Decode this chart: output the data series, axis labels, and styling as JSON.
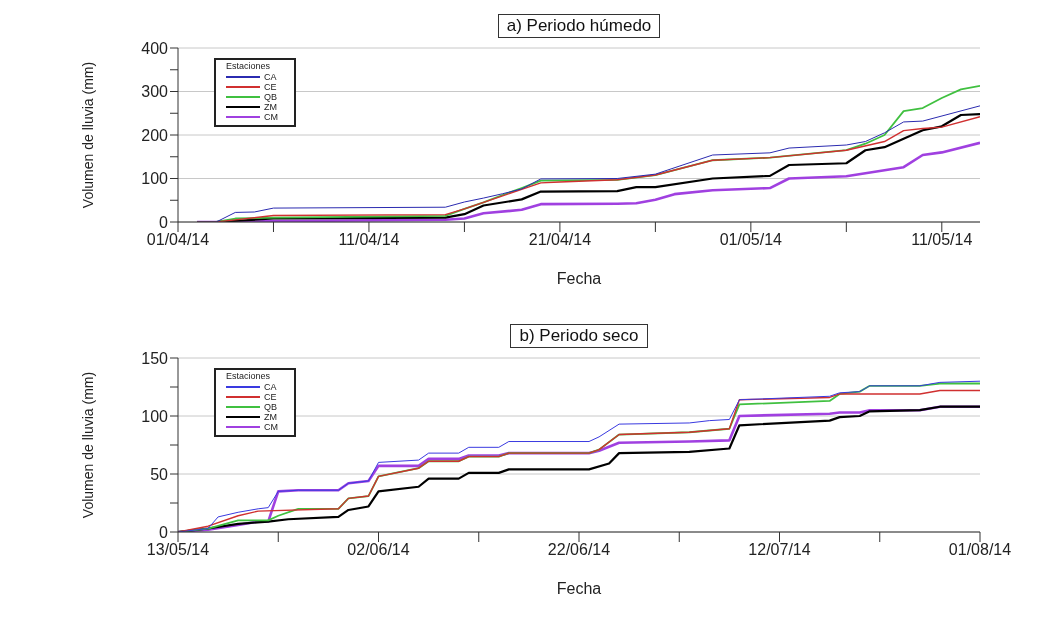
{
  "chart_data": [
    {
      "type": "line",
      "title": "a) Periodo húmedo",
      "xlabel": "Fecha",
      "ylabel": "Volumen de lluvia (mm)",
      "legend_title": "Estaciones",
      "legend": "top left",
      "grid": "y",
      "xlim": [
        "--04-01",
        "--05-13"
      ],
      "xticks": [
        {
          "value": "--04-01",
          "label": "01/04/14"
        },
        {
          "value": "--04-06",
          "label": null
        },
        {
          "value": "--04-11",
          "label": "11/04/14"
        },
        {
          "value": "--04-16",
          "label": null
        },
        {
          "value": "--04-21",
          "label": "21/04/14"
        },
        {
          "value": "--04-26",
          "label": null
        },
        {
          "value": "--05-01",
          "label": "01/05/14"
        },
        {
          "value": "--05-06",
          "label": null
        },
        {
          "value": "--05-11",
          "label": "11/05/14"
        }
      ],
      "ylim": [
        0,
        400
      ],
      "yticks": [
        0,
        {
          "value": 50,
          "label": null
        },
        100,
        {
          "value": 150,
          "label": null
        },
        200,
        {
          "value": 250,
          "label": null
        },
        300,
        {
          "value": 350,
          "label": null
        },
        400
      ],
      "series": [
        {
          "name": "CA",
          "color": "#2b2bb0",
          "x": [
            "--04-02",
            "--04-03",
            "--04-04",
            "--04-05",
            "--04-06",
            "--04-15",
            "--04-16",
            "--04-17",
            "--04-18",
            "--04-19",
            "--04-20",
            "--04-24",
            "--04-26",
            "--04-29",
            "--05-02",
            "--05-03",
            "--05-06",
            "--05-07",
            "--05-08",
            "--05-09",
            "--05-10",
            "--05-13"
          ],
          "values": [
            0,
            0,
            22,
            23,
            32,
            34,
            46,
            55,
            65,
            76,
            99,
            100,
            110,
            154,
            159,
            170,
            177,
            185,
            205,
            230,
            232,
            267
          ]
        },
        {
          "name": "CE",
          "color": "#d03030",
          "x": [
            "--04-02",
            "--04-03",
            "--04-04",
            "--04-06",
            "--04-15",
            "--04-16",
            "--04-17",
            "--04-18",
            "--04-19",
            "--04-20",
            "--04-21",
            "--04-24",
            "--04-26",
            "--04-29",
            "--05-02",
            "--05-06",
            "--05-08",
            "--05-09",
            "--05-10",
            "--05-11",
            "--05-13"
          ],
          "values": [
            0,
            0,
            5,
            15,
            17,
            30,
            45,
            60,
            75,
            90,
            92,
            97,
            108,
            142,
            148,
            165,
            185,
            210,
            215,
            218,
            242
          ]
        },
        {
          "name": "QB",
          "color": "#40c040",
          "x": [
            "--04-02",
            "--04-03",
            "--04-04",
            "--04-06",
            "--04-15",
            "--04-16",
            "--04-17",
            "--04-18",
            "--04-19",
            "--04-20",
            "--04-24",
            "--04-26",
            "--04-29",
            "--05-02",
            "--05-06",
            "--05-07",
            "--05-08",
            "--05-09",
            "--05-10",
            "--05-11",
            "--05-12",
            "--05-13"
          ],
          "values": [
            0,
            0,
            8,
            10,
            14,
            30,
            45,
            62,
            78,
            95,
            97,
            108,
            142,
            148,
            165,
            180,
            200,
            255,
            262,
            285,
            305,
            313
          ]
        },
        {
          "name": "ZM",
          "color": "#000000",
          "x": [
            "--04-02",
            "--04-03",
            "--04-06",
            "--04-15",
            "--04-16",
            "--04-17",
            "--04-19",
            "--04-20",
            "--04-24",
            "--04-25",
            "--04-26",
            "--04-29",
            "--05-02",
            "--05-03",
            "--05-06",
            "--05-07",
            "--05-08",
            "--05-10",
            "--05-11",
            "--05-12",
            "--05-13"
          ],
          "values": [
            0,
            0,
            8,
            10,
            18,
            38,
            52,
            70,
            71,
            80,
            80,
            100,
            106,
            131,
            135,
            165,
            172,
            211,
            220,
            246,
            248
          ]
        },
        {
          "name": "CM",
          "color": "#a040e0",
          "x": [
            "--04-02",
            "--04-03",
            "--04-06",
            "--04-15",
            "--04-16",
            "--04-17",
            "--04-19",
            "--04-20",
            "--04-24",
            "--04-25",
            "--04-26",
            "--04-27",
            "--04-29",
            "--05-02",
            "--05-03",
            "--05-06",
            "--05-09",
            "--05-10",
            "--05-11",
            "--05-13"
          ],
          "values": [
            0,
            0,
            2,
            5,
            8,
            20,
            28,
            41,
            42,
            43,
            51,
            64,
            73,
            78,
            100,
            105,
            126,
            154,
            160,
            182
          ]
        }
      ]
    },
    {
      "type": "line",
      "title": "b) Periodo seco",
      "xlabel": "Fecha",
      "ylabel": "Volumen de lluvia (mm)",
      "legend_title": "Estaciones",
      "legend": "top left",
      "grid": "y",
      "xlim": [
        "--05-13",
        "--08-01"
      ],
      "xticks": [
        {
          "value": "--05-13",
          "label": "13/05/14"
        },
        {
          "value": "--05-23",
          "label": null
        },
        {
          "value": "--06-02",
          "label": "02/06/14"
        },
        {
          "value": "--06-12",
          "label": null
        },
        {
          "value": "--06-22",
          "label": "22/06/14"
        },
        {
          "value": "--07-02",
          "label": null
        },
        {
          "value": "--07-12",
          "label": "12/07/14"
        },
        {
          "value": "--07-22",
          "label": null
        },
        {
          "value": "--08-01",
          "label": "01/08/14"
        }
      ],
      "ylim": [
        0,
        150
      ],
      "yticks": [
        0,
        {
          "value": 25,
          "label": null
        },
        50,
        {
          "value": 75,
          "label": null
        },
        100,
        {
          "value": 125,
          "label": null
        },
        150
      ],
      "series": [
        {
          "name": "CA",
          "color": "#3a3ae0",
          "x": [
            "--05-13",
            "--05-16",
            "--05-17",
            "--05-19",
            "--05-21",
            "--05-22",
            "--05-23",
            "--05-25",
            "--05-29",
            "--05-30",
            "--06-01",
            "--06-02",
            "--06-06",
            "--06-07",
            "--06-10",
            "--06-11",
            "--06-14",
            "--06-15",
            "--06-23",
            "--06-24",
            "--06-26",
            "--07-03",
            "--07-05",
            "--07-07",
            "--07-08",
            "--07-17",
            "--07-18",
            "--07-20",
            "--07-21",
            "--07-26",
            "--07-28",
            "--08-01"
          ],
          "values": [
            0,
            3,
            13,
            17,
            20,
            21,
            35,
            36,
            36,
            42,
            44,
            60,
            62,
            68,
            68,
            73,
            73,
            78,
            78,
            82,
            93,
            94,
            96,
            97,
            114,
            117,
            120,
            121,
            126,
            126,
            129,
            130
          ]
        },
        {
          "name": "CE",
          "color": "#d03030",
          "x": [
            "--05-13",
            "--05-16",
            "--05-19",
            "--05-21",
            "--05-29",
            "--05-30",
            "--06-01",
            "--06-02",
            "--06-06",
            "--06-07",
            "--06-10",
            "--06-11",
            "--06-14",
            "--06-15",
            "--06-23",
            "--06-24",
            "--06-26",
            "--07-03",
            "--07-07",
            "--07-08",
            "--07-17",
            "--07-18",
            "--07-26",
            "--07-28",
            "--08-01"
          ],
          "values": [
            0,
            5,
            14,
            18,
            20,
            29,
            31,
            48,
            55,
            61,
            61,
            65,
            65,
            68,
            68,
            71,
            84,
            86,
            89,
            114,
            116,
            119,
            119,
            122,
            122
          ]
        },
        {
          "name": "QB",
          "color": "#40c040",
          "x": [
            "--05-13",
            "--05-16",
            "--05-19",
            "--05-22",
            "--05-23",
            "--05-25",
            "--05-29",
            "--05-30",
            "--06-01",
            "--06-02",
            "--06-06",
            "--06-07",
            "--06-10",
            "--06-11",
            "--06-14",
            "--06-15",
            "--06-23",
            "--06-24",
            "--06-26",
            "--07-03",
            "--07-07",
            "--07-08",
            "--07-17",
            "--07-18",
            "--07-20",
            "--07-21",
            "--07-26",
            "--07-28",
            "--08-01"
          ],
          "values": [
            0,
            3,
            10,
            10,
            14,
            20,
            20,
            29,
            31,
            48,
            55,
            61,
            61,
            65,
            65,
            68,
            68,
            71,
            84,
            86,
            89,
            110,
            113,
            119,
            121,
            126,
            126,
            128,
            128
          ]
        },
        {
          "name": "ZM",
          "color": "#000000",
          "x": [
            "--05-13",
            "--05-16",
            "--05-19",
            "--05-22",
            "--05-24",
            "--05-29",
            "--05-30",
            "--06-01",
            "--06-02",
            "--06-06",
            "--06-07",
            "--06-10",
            "--06-11",
            "--06-14",
            "--06-15",
            "--06-23",
            "--06-25",
            "--06-26",
            "--07-03",
            "--07-07",
            "--07-08",
            "--07-17",
            "--07-18",
            "--07-20",
            "--07-21",
            "--07-26",
            "--07-28",
            "--08-01"
          ],
          "values": [
            0,
            3,
            7,
            9,
            11,
            13,
            19,
            22,
            35,
            39,
            46,
            46,
            51,
            51,
            54,
            54,
            59,
            68,
            69,
            72,
            92,
            96,
            99,
            100,
            104,
            105,
            108,
            108
          ]
        },
        {
          "name": "CM",
          "color": "#a040e0",
          "x": [
            "--05-13",
            "--05-16",
            "--05-19",
            "--05-21",
            "--05-22",
            "--05-23",
            "--05-25",
            "--05-29",
            "--05-30",
            "--06-01",
            "--06-02",
            "--06-06",
            "--06-07",
            "--06-10",
            "--06-11",
            "--06-14",
            "--06-15",
            "--06-23",
            "--06-24",
            "--06-26",
            "--07-03",
            "--07-07",
            "--07-08",
            "--07-17",
            "--07-18",
            "--07-20",
            "--07-21",
            "--07-26",
            "--07-28",
            "--08-01"
          ],
          "values": [
            0,
            2,
            6,
            9,
            9,
            35,
            36,
            36,
            42,
            44,
            57,
            57,
            63,
            63,
            66,
            66,
            68,
            68,
            70,
            77,
            78,
            79,
            100,
            102,
            103,
            103,
            105,
            105,
            108,
            108
          ]
        }
      ]
    }
  ]
}
